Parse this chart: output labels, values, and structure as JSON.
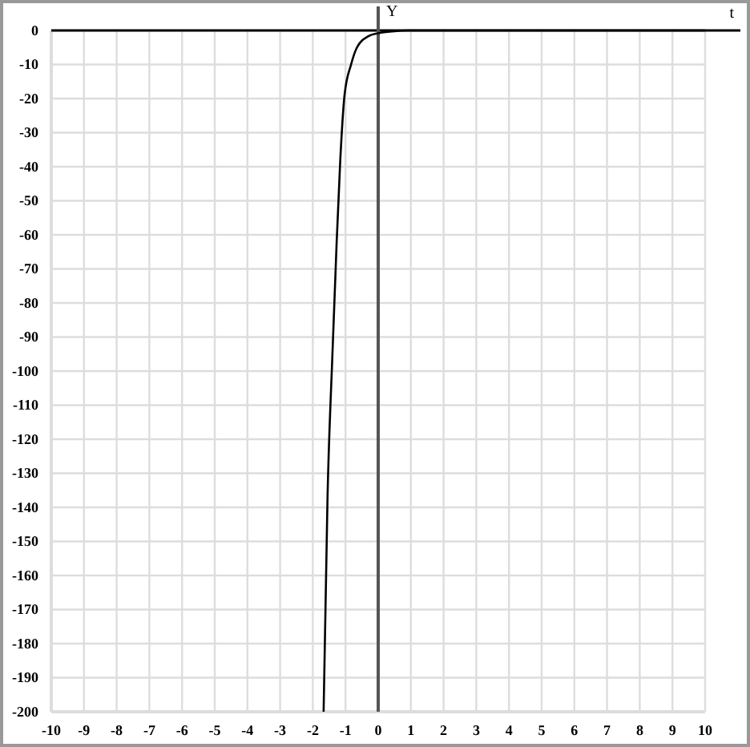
{
  "chart_data": {
    "type": "line",
    "xlabel": "t",
    "ylabel": "Y",
    "xlim": [
      -10,
      10
    ],
    "ylim": [
      -200,
      0
    ],
    "xticks": [
      -10,
      -9,
      -8,
      -7,
      -6,
      -5,
      -4,
      -3,
      -2,
      -1,
      0,
      1,
      2,
      3,
      4,
      5,
      6,
      7,
      8,
      9,
      10
    ],
    "yticks": [
      -200,
      -190,
      -180,
      -170,
      -160,
      -150,
      -140,
      -130,
      -120,
      -110,
      -100,
      -90,
      -80,
      -70,
      -60,
      -50,
      -40,
      -30,
      -20,
      -10,
      0
    ],
    "grid": true,
    "marker": "none",
    "line_style": "solid",
    "series": [
      {
        "color": "#000000",
        "x": [
          -1.67,
          -1.55,
          -1.4,
          -1.27,
          -1.16,
          -1.03,
          -0.83,
          -0.65,
          -0.3,
          0,
          0.5,
          1,
          2,
          5,
          10
        ],
        "values": [
          -200,
          -137,
          -95,
          -62,
          -38,
          -19,
          -10,
          -5,
          -1.7,
          -0.8,
          -0.2,
          0,
          0,
          0,
          0
        ]
      }
    ]
  }
}
